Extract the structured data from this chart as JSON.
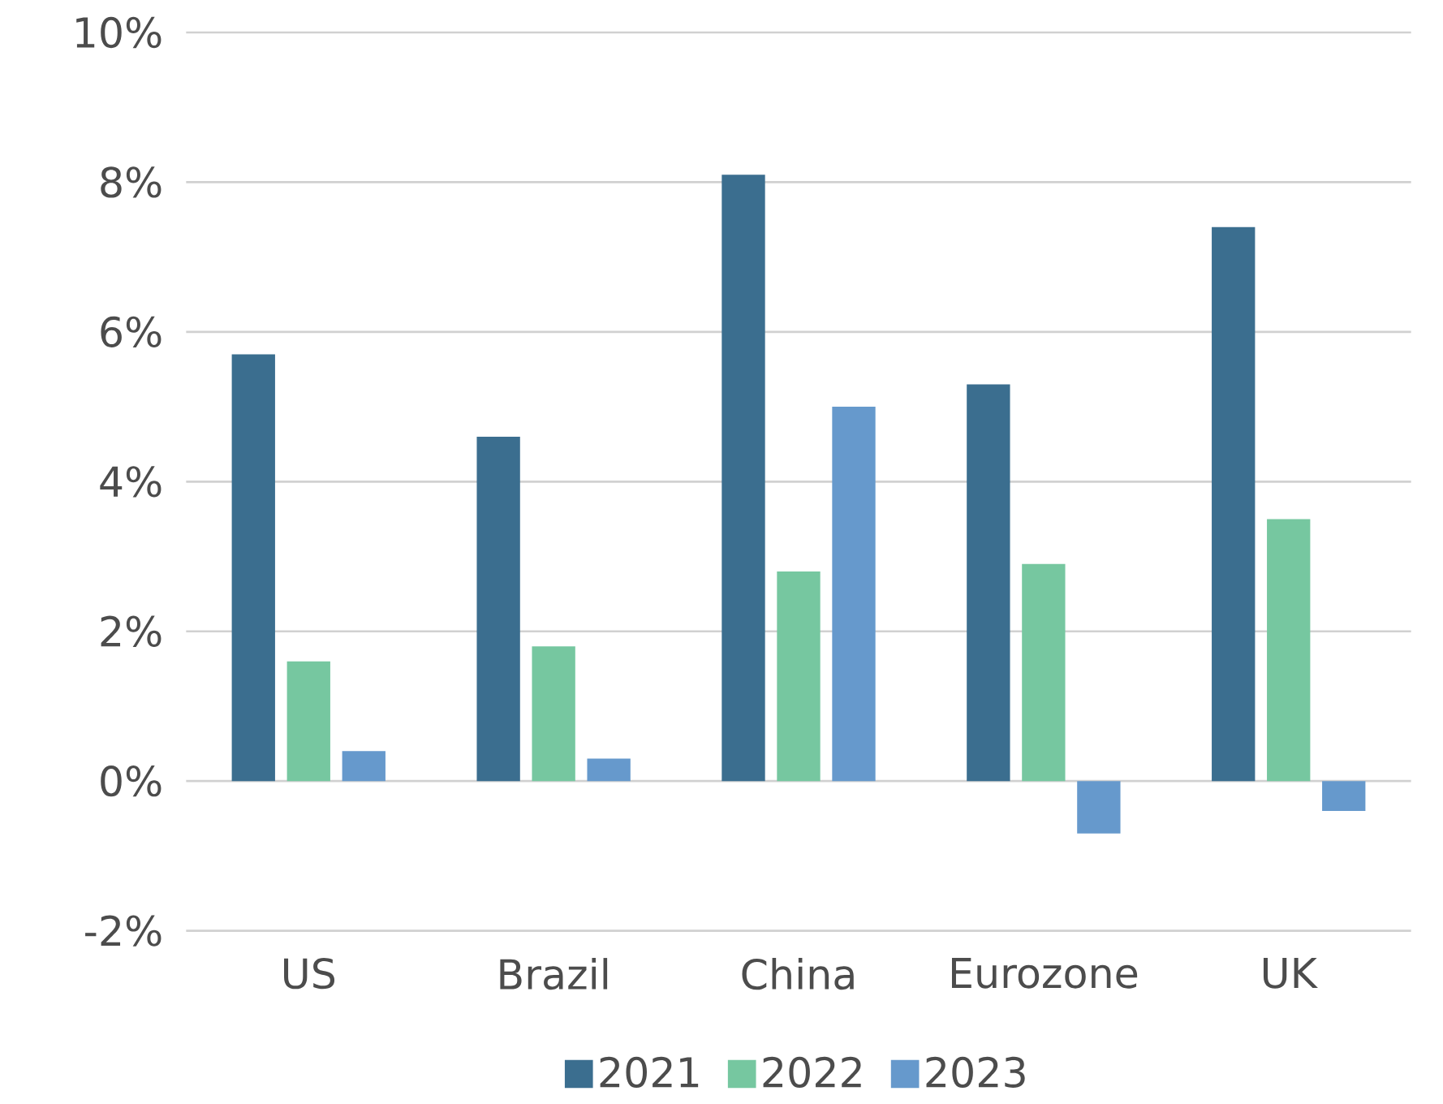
{
  "chart_data": {
    "type": "bar",
    "categories": [
      "US",
      "Brazil",
      "China",
      "Eurozone",
      "UK"
    ],
    "series": [
      {
        "name": "2021",
        "color": "#3b6e8f",
        "values": [
          5.7,
          4.6,
          8.1,
          5.3,
          7.4
        ]
      },
      {
        "name": "2022",
        "color": "#76c7a0",
        "values": [
          1.6,
          1.8,
          2.8,
          2.9,
          3.5
        ]
      },
      {
        "name": "2023",
        "color": "#6699cc",
        "values": [
          0.4,
          0.3,
          5.0,
          -0.7,
          -0.4
        ]
      }
    ],
    "ylim": [
      -2,
      10
    ],
    "yticks": [
      {
        "value": -2,
        "label": "-2%"
      },
      {
        "value": 0,
        "label": "0%"
      },
      {
        "value": 2,
        "label": "2%"
      },
      {
        "value": 4,
        "label": "4%"
      },
      {
        "value": 6,
        "label": "6%"
      },
      {
        "value": 8,
        "label": "8%"
      },
      {
        "value": 10,
        "label": "10%"
      }
    ],
    "grid": "y",
    "legend": "bottom"
  }
}
